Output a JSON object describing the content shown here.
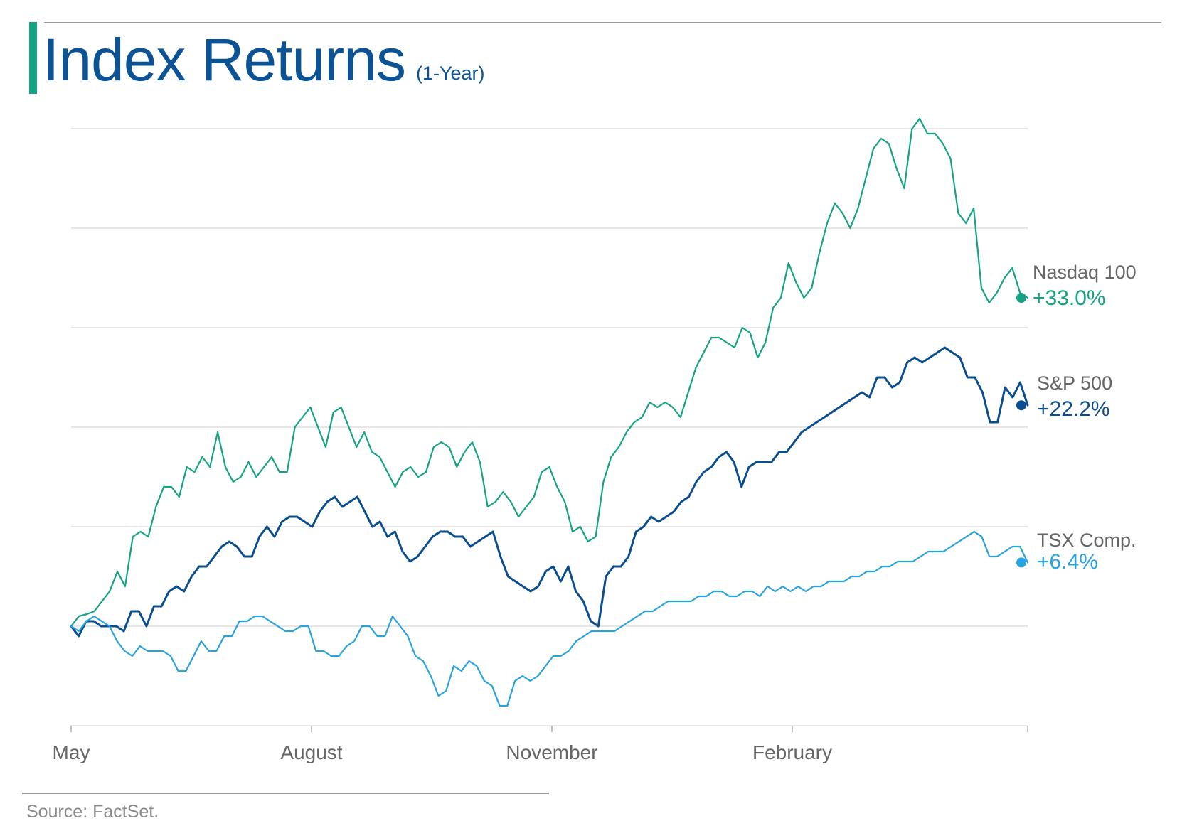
{
  "title": "Index Returns",
  "subtitle": "(1-Year)",
  "source": "Source: FactSet.",
  "colors": {
    "accent": "#15a383",
    "title": "#0b5394",
    "grid": "#d6d6d6",
    "axis_text": "#666666"
  },
  "chart_data": {
    "type": "line",
    "x_axis": {
      "ticks": [
        "May",
        "August",
        "November",
        "February"
      ]
    },
    "ylim": [
      -10,
      50
    ],
    "grid": true,
    "y_gridlines": [
      -10,
      0,
      10,
      20,
      30,
      40,
      50
    ],
    "legend_placement": "right end of each line",
    "series": [
      {
        "name": "Nasdaq 100",
        "label": "Nasdaq 100",
        "value_label": "+33.0%",
        "color": "#15a383",
        "final": 33.0,
        "values": [
          0,
          1,
          1.2,
          1.5,
          2.5,
          3.5,
          5.5,
          4,
          9,
          9.5,
          9,
          12,
          14,
          14,
          13,
          16,
          15.5,
          17,
          16,
          19.5,
          16,
          14.5,
          15,
          16.5,
          15,
          16,
          17,
          15.5,
          15.5,
          20,
          21,
          22,
          20,
          18,
          21.5,
          22,
          20,
          18,
          19.5,
          17.5,
          17,
          15.5,
          14,
          15.5,
          16,
          15,
          15.5,
          18,
          18.5,
          18,
          16,
          17.5,
          18.5,
          16.5,
          12,
          12.5,
          13.5,
          12.5,
          11,
          12,
          13,
          15.5,
          16,
          14,
          12.5,
          9.5,
          10,
          8.5,
          9,
          14.5,
          17,
          18,
          19.5,
          20.5,
          21,
          22.5,
          22,
          22.5,
          22,
          21,
          23.5,
          26,
          27.5,
          29,
          29,
          28.5,
          28,
          30,
          29.5,
          27,
          28.5,
          32,
          33,
          36.5,
          34.5,
          33,
          34,
          37.5,
          40.5,
          42.5,
          41.5,
          40,
          42,
          45,
          48,
          49,
          48.5,
          46,
          44,
          50,
          51,
          49.5,
          49.5,
          48.5,
          47,
          41.5,
          40.5,
          42,
          34,
          32.5,
          33.5,
          35,
          36,
          33.5,
          33
        ]
      },
      {
        "name": "S&P 500",
        "label": "S&P 500",
        "value_label": "+22.2%",
        "color": "#0b4e8f",
        "final": 22.2,
        "values": [
          0,
          -1,
          0.5,
          0.5,
          0,
          0,
          0,
          -0.5,
          1.5,
          1.5,
          0,
          2,
          2,
          3.5,
          4,
          3.5,
          5,
          6,
          6,
          7,
          8,
          8.5,
          8,
          7,
          7,
          9,
          10,
          9,
          10.5,
          11,
          11,
          10.5,
          10,
          11.5,
          12.5,
          13,
          12,
          12.5,
          13,
          11.5,
          10,
          10.5,
          9,
          9.5,
          7.5,
          6.5,
          7,
          8,
          9,
          9.5,
          9.5,
          9,
          9,
          8,
          8.5,
          9,
          9.5,
          7,
          5,
          4.5,
          4,
          3.5,
          4,
          5.5,
          6,
          4.5,
          6,
          3.5,
          2.5,
          0.5,
          0,
          5,
          6,
          6,
          7,
          9.5,
          10,
          11,
          10.5,
          11,
          11.5,
          12.5,
          13,
          14.5,
          15.5,
          16,
          17,
          17.5,
          16.5,
          14,
          16,
          16.5,
          16.5,
          16.5,
          17.5,
          17.5,
          18.5,
          19.5,
          20,
          20.5,
          21,
          21.5,
          22,
          22.5,
          23,
          23.5,
          23,
          25,
          25,
          24,
          24.5,
          26.5,
          27,
          26.5,
          27,
          27.5,
          28,
          27.5,
          27,
          25,
          25,
          23.5,
          20.5,
          20.5,
          24,
          23,
          24.5,
          22.2
        ]
      },
      {
        "name": "TSX Comp.",
        "label": "TSX Comp.",
        "value_label": "+6.4%",
        "color": "#29a3dd",
        "final": 6.4,
        "values": [
          0,
          -0.5,
          0.5,
          1,
          0.5,
          0,
          -1.5,
          -2.5,
          -3,
          -2,
          -2.5,
          -2.5,
          -2.5,
          -3,
          -4.5,
          -4.5,
          -3,
          -1.5,
          -2.5,
          -2.5,
          -1,
          -1,
          0.5,
          0.5,
          1,
          1,
          0.5,
          0,
          -0.5,
          -0.5,
          0,
          0,
          -2.5,
          -2.5,
          -3,
          -3,
          -2,
          -1.5,
          0,
          0,
          -1,
          -1,
          1,
          0,
          -1,
          -3,
          -3.5,
          -5,
          -7,
          -6.5,
          -4,
          -4.5,
          -3.5,
          -4,
          -5.5,
          -6,
          -8,
          -8,
          -5.5,
          -5,
          -5.5,
          -5,
          -4,
          -3,
          -3,
          -2.5,
          -1.5,
          -1,
          -0.5,
          -0.5,
          -0.5,
          -0.5,
          0,
          0.5,
          1,
          1.5,
          1.5,
          2,
          2.5,
          2.5,
          2.5,
          2.5,
          3,
          3,
          3.5,
          3.5,
          3,
          3,
          3.5,
          3.5,
          3,
          4,
          3.5,
          4,
          3.5,
          4,
          3.5,
          4,
          4,
          4.5,
          4.5,
          4.5,
          5,
          5,
          5.5,
          5.5,
          6,
          6,
          6.5,
          6.5,
          6.5,
          7,
          7.5,
          7.5,
          7.5,
          8,
          8.5,
          9,
          9.5,
          9,
          7,
          7,
          7.5,
          8,
          8,
          6.4
        ]
      }
    ]
  }
}
